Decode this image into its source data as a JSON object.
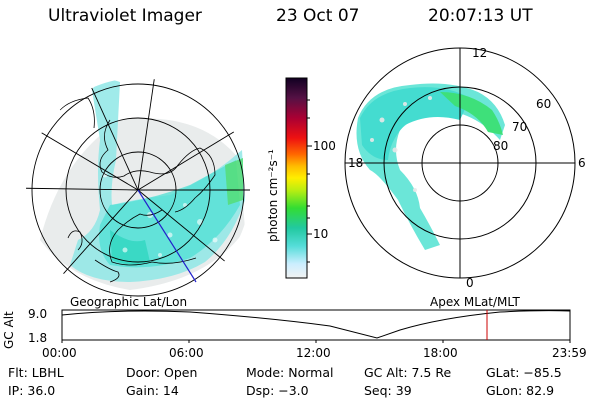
{
  "header": {
    "title": "Ultraviolet Imager",
    "date": "23 Oct 07",
    "time": "20:07:13 UT"
  },
  "left_panel": {
    "caption": "Geographic Lat/Lon",
    "coastline_color": "#000000",
    "aurora_color": "#5be3d4"
  },
  "right_panel": {
    "caption": "Apex  MLat/MLT",
    "mlt_labels": {
      "top": "12",
      "left": "18",
      "right": "6",
      "bottom": "0"
    },
    "lat_labels": [
      "60",
      "70",
      "80"
    ],
    "aurora_color": "#5be3d4",
    "aurora_peak_color": "#3ee07a"
  },
  "colorbar": {
    "label": "photon cm⁻²s⁻¹",
    "ticks": [
      "100",
      "10"
    ],
    "scale": "log"
  },
  "alt_plot": {
    "ylabel": "GC Alt",
    "yticks": [
      "9.0",
      "1.8"
    ],
    "xticks": [
      "00:00",
      "06:00",
      "12:00",
      "18:00",
      "23:59"
    ],
    "marker_color": "#cc0000"
  },
  "info": {
    "row1": {
      "flt": "Flt: LBHL",
      "door": "Door: Open",
      "mode": "Mode: Normal",
      "gc_alt": "GC Alt: 7.5 Re",
      "glat": "GLat: −85.5"
    },
    "row2": {
      "ip": "IP: 36.0",
      "gain": "Gain: 14",
      "dsp": "Dsp:    −3.0",
      "seq": "Seq: 39",
      "glon": "GLon:  82.9"
    }
  }
}
